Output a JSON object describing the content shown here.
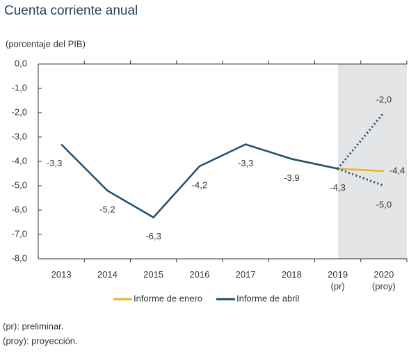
{
  "chart_data": {
    "type": "line",
    "title": "Cuenta corriente anual",
    "subtitle": "(porcentaje del PIB)",
    "categories": [
      "2013",
      "2014",
      "2015",
      "2016",
      "2017",
      "2018",
      "2019\n(pr)",
      "2020\n(proy)"
    ],
    "series": [
      {
        "name": "Informe de enero",
        "color": "#e3b51e",
        "dashed": false,
        "values": [
          null,
          null,
          null,
          null,
          null,
          -3.9,
          -4.3,
          -4.4
        ],
        "value_labels": [
          null,
          null,
          null,
          null,
          null,
          null,
          null,
          "-4,4"
        ]
      },
      {
        "name": "Informe de abril",
        "color": "#1f4e70",
        "dashed": false,
        "values": [
          -3.3,
          -5.2,
          -6.3,
          -4.2,
          -3.3,
          -3.9,
          -4.3,
          null
        ],
        "value_labels": [
          "-3,3",
          "-5,2",
          "-6,3",
          "-4,2",
          "-3,3",
          "-3,9",
          "-4,3",
          null
        ]
      },
      {
        "color": "#1f4e70",
        "dashed": true,
        "values": [
          null,
          null,
          null,
          null,
          null,
          null,
          -4.3,
          -2.0
        ],
        "value_labels": [
          null,
          null,
          null,
          null,
          null,
          null,
          null,
          "-2,0"
        ]
      },
      {
        "color": "#1f4e70",
        "dashed": true,
        "values": [
          null,
          null,
          null,
          null,
          null,
          null,
          -4.3,
          -5.0
        ],
        "value_labels": [
          null,
          null,
          null,
          null,
          null,
          null,
          null,
          "-5,0"
        ]
      }
    ],
    "ylim": [
      -8,
      0
    ],
    "yticks": [
      {
        "value": 0,
        "label": "0,0"
      },
      {
        "value": -1,
        "label": "-1,0"
      },
      {
        "value": -2,
        "label": "-2,0"
      },
      {
        "value": -3,
        "label": "-3,0"
      },
      {
        "value": -4,
        "label": "-4,0"
      },
      {
        "value": -5,
        "label": "-5,0"
      },
      {
        "value": -6,
        "label": "-6,0"
      },
      {
        "value": -7,
        "label": "-7,0"
      },
      {
        "value": -8,
        "label": "-8,0"
      }
    ],
    "notes": [
      "(pr): preliminar.",
      "(proy): proyección."
    ]
  }
}
